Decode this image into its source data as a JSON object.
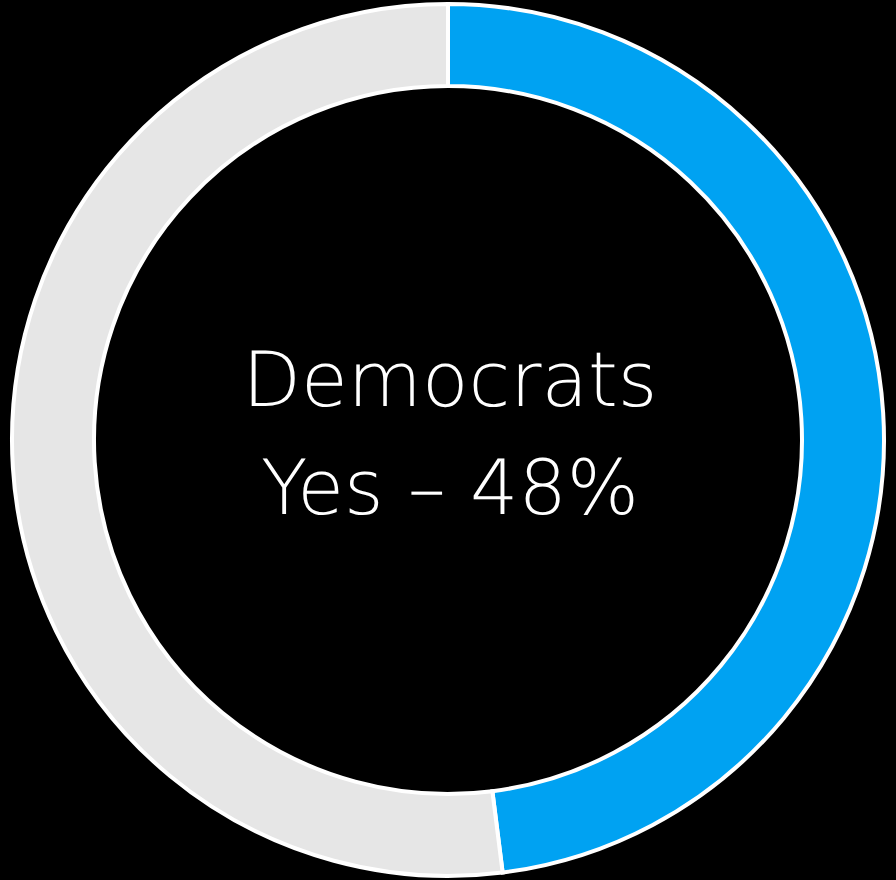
{
  "chart_data": {
    "type": "donut",
    "title": "Democrats",
    "annotations": [
      "Yes – 48%"
    ],
    "categories": [
      null,
      null
    ],
    "values": [
      48,
      52
    ],
    "colors": [
      "#00a2f2",
      "#e6e6e6"
    ]
  }
}
